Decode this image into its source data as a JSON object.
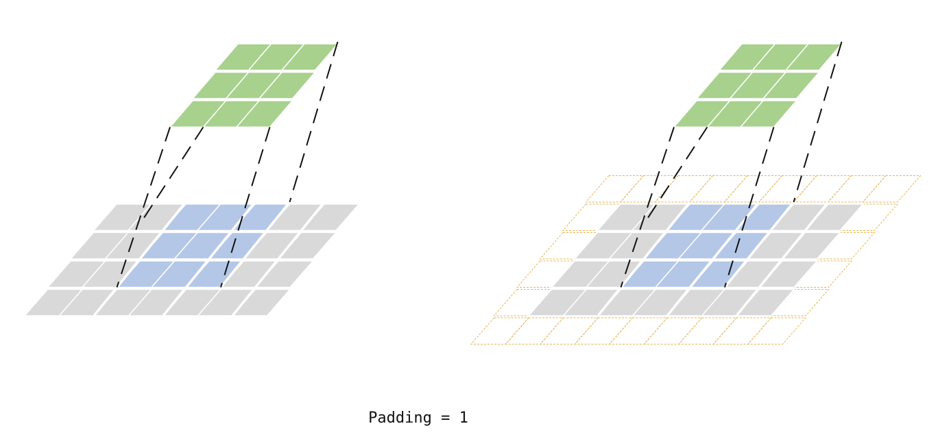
{
  "caption": "Padding = 1",
  "colors": {
    "output": "#a8d18d",
    "input": "#d9d9d9",
    "receptive_field": "#b4c7e7",
    "padding_border": "#e6b450",
    "projection": "#111111",
    "separator": "#ffffff"
  },
  "panels": [
    {
      "id": "no-padding",
      "input_size": [
        4,
        7
      ],
      "padding": 0,
      "output_size": [
        3,
        3
      ],
      "highlight": {
        "rows": [
          0,
          2
        ],
        "cols": [
          2,
          4
        ]
      }
    },
    {
      "id": "padding-1",
      "input_size": [
        4,
        7
      ],
      "padding": 1,
      "output_size": [
        3,
        3
      ],
      "highlight": {
        "rows": [
          0,
          2
        ],
        "cols": [
          2,
          4
        ]
      }
    }
  ]
}
